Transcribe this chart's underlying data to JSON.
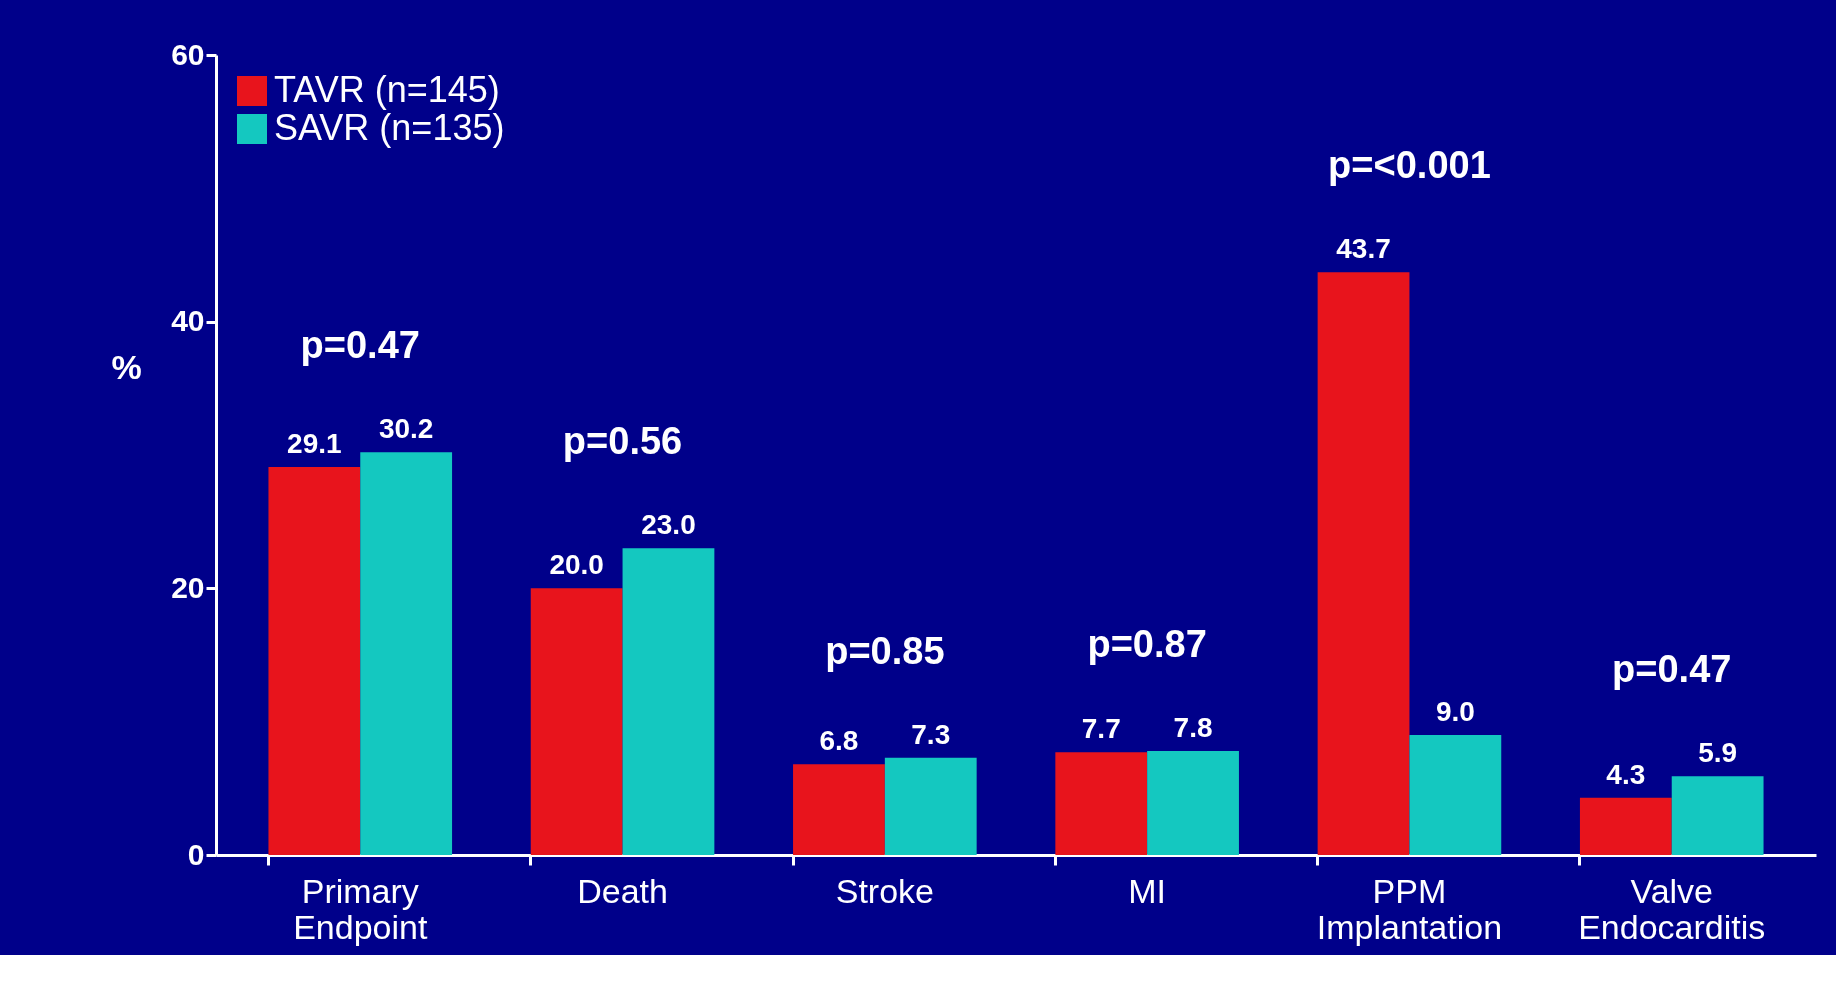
{
  "chart_data": {
    "type": "bar",
    "ylabel": "%",
    "categories": [
      "Primary Endpoint",
      "Death",
      "Stroke",
      "MI",
      "PPM Implantation",
      "Valve Endocarditis"
    ],
    "series": [
      {
        "name": "TAVR (n=145)",
        "color": "#e8141c",
        "values": [
          29.1,
          20.0,
          6.8,
          7.7,
          43.7,
          4.3
        ],
        "value_labels": [
          "29.1",
          "20.0",
          "6.8",
          "7.7",
          "43.7",
          "4.3"
        ]
      },
      {
        "name": "SAVR (n=135)",
        "color": "#14c8c0",
        "values": [
          30.2,
          23.0,
          7.3,
          7.8,
          9.0,
          5.9
        ],
        "value_labels": [
          "30.2",
          "23.0",
          "7.3",
          "7.8",
          "9.0",
          "5.9"
        ]
      }
    ],
    "ylim": [
      0,
      60
    ],
    "yticks": [
      0,
      20,
      40,
      60
    ],
    "grid": false,
    "legend": "top left",
    "annotations": [
      "p=0.47",
      "p=0.56",
      "p=0.85",
      "p=0.87",
      "p=<0.001",
      "p=0.47"
    ]
  }
}
